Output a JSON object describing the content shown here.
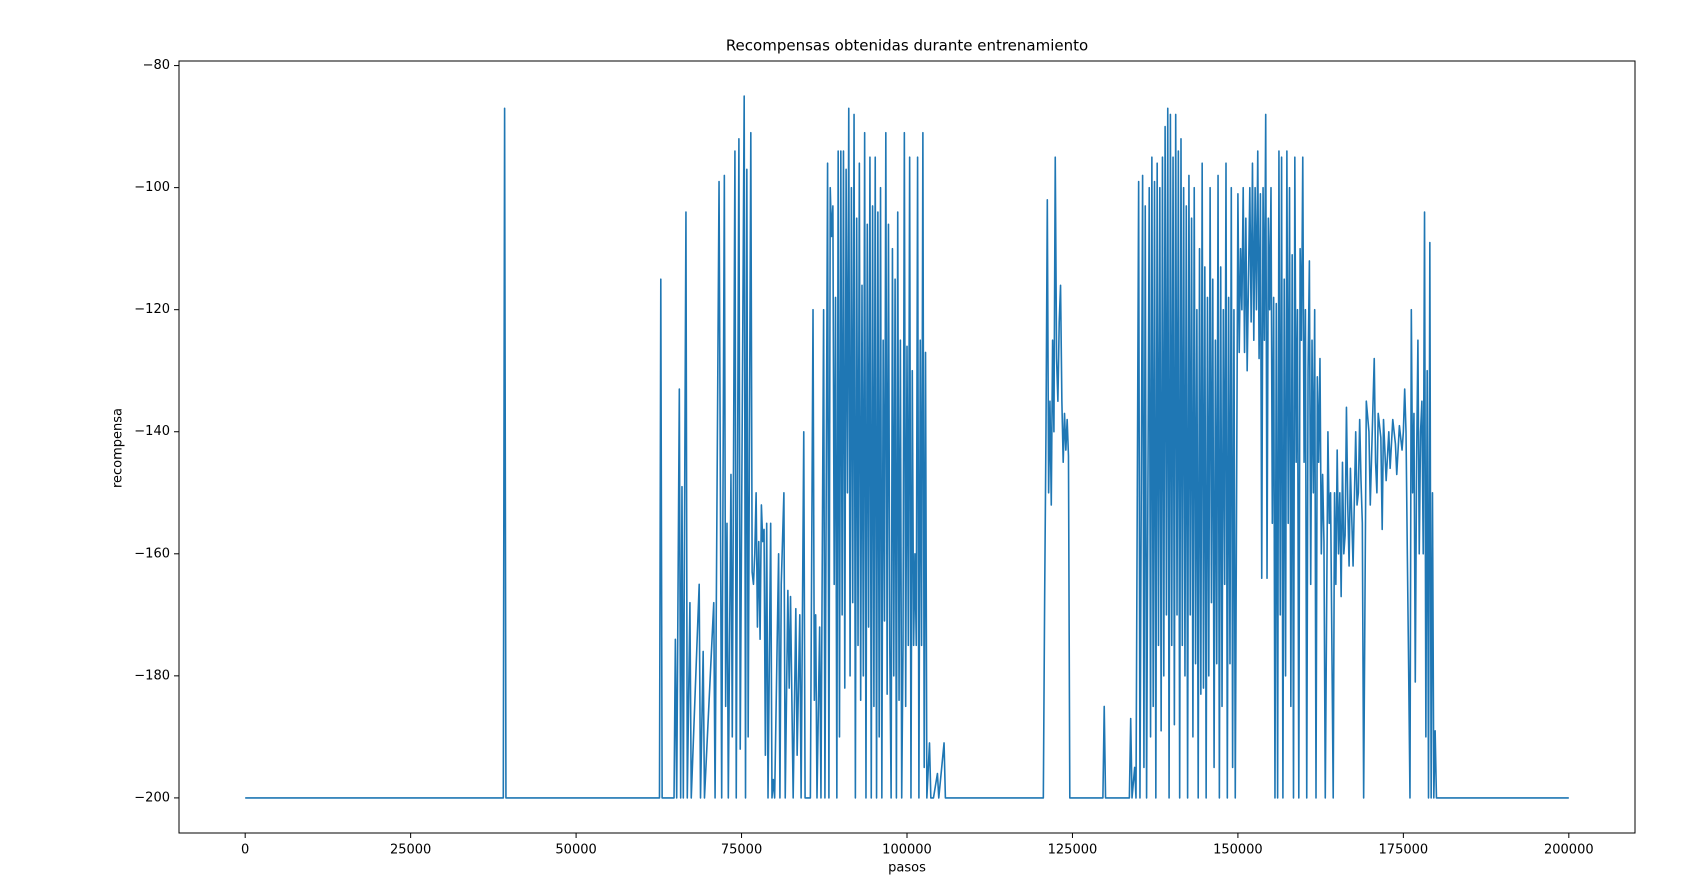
{
  "chart_data": {
    "type": "line",
    "title": "Recompensas obtenidas durante entrenamiento",
    "x_label": "pasos",
    "y_label": "recompensa",
    "xlim": [
      -10000,
      210000
    ],
    "ylim": [
      -205.75,
      -79.25
    ],
    "xticks": [
      0,
      25000,
      50000,
      75000,
      100000,
      125000,
      150000,
      175000,
      200000
    ],
    "yticks": [
      {
        "value": -200,
        "label": "−200"
      },
      {
        "value": -180,
        "label": "−180"
      },
      {
        "value": -160,
        "label": "−160"
      },
      {
        "value": -140,
        "label": "−140"
      },
      {
        "value": -120,
        "label": "−120"
      },
      {
        "value": -100,
        "label": "−100"
      },
      {
        "value": -80,
        "label": "−80"
      }
    ],
    "grid": false,
    "color": "#1f77b4",
    "x": [
      0,
      39000,
      39200,
      39400,
      62600,
      62800,
      63000,
      64800,
      65000,
      65200,
      65600,
      65800,
      66000,
      66200,
      66600,
      66800,
      67200,
      67400,
      68600,
      68800,
      69200,
      69400,
      70800,
      71000,
      71600,
      71800,
      72000,
      72400,
      72600,
      72800,
      73000,
      73400,
      73600,
      74000,
      74200,
      74600,
      74800,
      75400,
      75600,
      75800,
      76000,
      76400,
      76600,
      76800,
      77000,
      77200,
      77400,
      77600,
      77800,
      78000,
      78200,
      78400,
      78600,
      78800,
      79000,
      79400,
      79600,
      79800,
      80000,
      80600,
      80800,
      81000,
      81400,
      81600,
      82000,
      82200,
      82400,
      82800,
      83200,
      83400,
      83800,
      84000,
      84400,
      84600,
      85400,
      85800,
      86000,
      86200,
      86400,
      86800,
      87000,
      87400,
      87600,
      88000,
      88200,
      88400,
      88600,
      88800,
      89000,
      89200,
      89400,
      89600,
      89800,
      90000,
      90200,
      90400,
      90600,
      90800,
      91000,
      91200,
      91400,
      91600,
      91800,
      92000,
      92200,
      92400,
      92600,
      92800,
      93000,
      93200,
      93400,
      93600,
      93800,
      94000,
      94200,
      94400,
      94600,
      94800,
      95000,
      95200,
      95400,
      95600,
      95800,
      96000,
      96200,
      96400,
      96600,
      96800,
      97000,
      97200,
      97400,
      97600,
      97800,
      98000,
      98200,
      98400,
      98600,
      98800,
      99000,
      99200,
      99400,
      99600,
      99800,
      100000,
      100200,
      100400,
      100600,
      100800,
      101000,
      101200,
      101400,
      101600,
      101800,
      102000,
      102200,
      102400,
      102600,
      102800,
      103000,
      103400,
      103600,
      104000,
      104600,
      104800,
      105600,
      105800,
      120600,
      120800,
      121000,
      121200,
      121400,
      121600,
      121800,
      122000,
      122200,
      122400,
      122600,
      122800,
      123000,
      123200,
      123400,
      123600,
      123800,
      124000,
      124200,
      124400,
      124600,
      129600,
      129800,
      130000,
      133600,
      133800,
      134000,
      134400,
      134600,
      135000,
      135200,
      135600,
      135800,
      136000,
      136200,
      136600,
      136800,
      137000,
      137200,
      137400,
      137600,
      137800,
      138000,
      138200,
      138400,
      138600,
      138800,
      139000,
      139200,
      139400,
      139600,
      139800,
      140000,
      140200,
      140400,
      140600,
      140800,
      141000,
      141200,
      141400,
      141600,
      141800,
      142000,
      142200,
      142400,
      142600,
      142800,
      143000,
      143200,
      143400,
      143600,
      143800,
      144000,
      144200,
      144400,
      144600,
      144800,
      145000,
      145200,
      145400,
      145600,
      145800,
      146000,
      146200,
      146400,
      146600,
      146800,
      147000,
      147200,
      147400,
      147600,
      147800,
      148000,
      148200,
      148400,
      148600,
      148800,
      149000,
      149200,
      149400,
      149600,
      150000,
      150200,
      150400,
      150600,
      150800,
      151000,
      151200,
      151400,
      151600,
      151800,
      152000,
      152200,
      152400,
      152600,
      152800,
      153000,
      153200,
      153400,
      153600,
      153800,
      154000,
      154200,
      154400,
      154600,
      154800,
      155000,
      155200,
      155400,
      155600,
      155800,
      156000,
      156200,
      156400,
      156600,
      156800,
      157000,
      157200,
      157400,
      157600,
      157800,
      158000,
      158200,
      158400,
      158600,
      158800,
      159000,
      159200,
      159400,
      159600,
      159800,
      160000,
      160200,
      160400,
      160600,
      160800,
      161000,
      161200,
      161400,
      161600,
      161800,
      162000,
      162200,
      162400,
      162600,
      162800,
      163000,
      163200,
      163600,
      163800,
      164000,
      164400,
      164600,
      164800,
      165000,
      165200,
      165400,
      165600,
      165800,
      166000,
      166200,
      166400,
      166600,
      166800,
      167000,
      167400,
      167800,
      168000,
      168200,
      168400,
      168600,
      168800,
      169000,
      169400,
      169800,
      170000,
      170400,
      170600,
      170800,
      171000,
      171200,
      171600,
      171800,
      172000,
      172400,
      172800,
      173000,
      173400,
      173800,
      174000,
      174400,
      174800,
      175000,
      175200,
      175400,
      175600,
      175800,
      176000,
      176200,
      176400,
      176600,
      176800,
      177000,
      177200,
      177400,
      177600,
      177800,
      178000,
      178200,
      178400,
      178600,
      178800,
      179000,
      179200,
      179400,
      179600,
      179800,
      180000,
      200000
    ],
    "values": [
      -200,
      -200,
      -87,
      -200,
      -200,
      -115,
      -200,
      -200,
      -174,
      -200,
      -133,
      -200,
      -149,
      -200,
      -104,
      -200,
      -168,
      -200,
      -165,
      -200,
      -176,
      -200,
      -168,
      -200,
      -99,
      -149,
      -200,
      -98,
      -185,
      -155,
      -200,
      -147,
      -190,
      -94,
      -200,
      -92,
      -192,
      -85,
      -200,
      -97,
      -190,
      -91,
      -163,
      -165,
      -160,
      -150,
      -172,
      -158,
      -174,
      -152,
      -158,
      -156,
      -193,
      -155,
      -200,
      -155,
      -200,
      -197,
      -200,
      -160,
      -200,
      -165,
      -150,
      -200,
      -166,
      -182,
      -167,
      -200,
      -169,
      -193,
      -170,
      -200,
      -140,
      -200,
      -200,
      -120,
      -184,
      -170,
      -200,
      -172,
      -200,
      -120,
      -200,
      -96,
      -200,
      -100,
      -108,
      -103,
      -165,
      -118,
      -200,
      -94,
      -190,
      -94,
      -170,
      -94,
      -182,
      -97,
      -150,
      -87,
      -180,
      -100,
      -168,
      -88,
      -200,
      -105,
      -175,
      -96,
      -184,
      -116,
      -180,
      -91,
      -200,
      -106,
      -172,
      -95,
      -200,
      -103,
      -185,
      -95,
      -200,
      -104,
      -190,
      -100,
      -200,
      -125,
      -171,
      -91,
      -183,
      -106,
      -175,
      -200,
      -110,
      -180,
      -115,
      -200,
      -104,
      -184,
      -125,
      -200,
      -175,
      -91,
      -185,
      -126,
      -175,
      -95,
      -200,
      -130,
      -175,
      -160,
      -175,
      -95,
      -200,
      -125,
      -175,
      -91,
      -195,
      -127,
      -200,
      -191,
      -200,
      -200,
      -196,
      -200,
      -191,
      -200,
      -200,
      -167,
      -140,
      -102,
      -150,
      -135,
      -152,
      -125,
      -140,
      -95,
      -128,
      -135,
      -122,
      -116,
      -135,
      -145,
      -137,
      -143,
      -138,
      -144,
      -200,
      -200,
      -185,
      -200,
      -200,
      -187,
      -200,
      -195,
      -200,
      -99,
      -200,
      -98,
      -195,
      -103,
      -200,
      -100,
      -190,
      -95,
      -185,
      -99,
      -200,
      -96,
      -175,
      -100,
      -189,
      -95,
      -180,
      -90,
      -170,
      -87,
      -200,
      -88,
      -175,
      -95,
      -188,
      -88,
      -170,
      -94,
      -200,
      -92,
      -175,
      -100,
      -180,
      -103,
      -200,
      -98,
      -170,
      -105,
      -190,
      -100,
      -178,
      -120,
      -200,
      -110,
      -183,
      -96,
      -182,
      -113,
      -200,
      -118,
      -180,
      -100,
      -168,
      -115,
      -195,
      -125,
      -178,
      -98,
      -200,
      -113,
      -185,
      -120,
      -165,
      -96,
      -200,
      -118,
      -178,
      -100,
      -195,
      -120,
      -200,
      -101,
      -127,
      -110,
      -120,
      -100,
      -127,
      -105,
      -130,
      -115,
      -100,
      -122,
      -96,
      -125,
      -100,
      -120,
      -94,
      -128,
      -101,
      -164,
      -100,
      -125,
      -88,
      -164,
      -105,
      -120,
      -100,
      -155,
      -118,
      -200,
      -119,
      -200,
      -94,
      -170,
      -95,
      -200,
      -115,
      -180,
      -94,
      -155,
      -100,
      -185,
      -111,
      -200,
      -95,
      -145,
      -120,
      -200,
      -110,
      -125,
      -95,
      -145,
      -120,
      -200,
      -130,
      -112,
      -165,
      -125,
      -150,
      -120,
      -200,
      -131,
      -145,
      -128,
      -160,
      -147,
      -158,
      -200,
      -140,
      -155,
      -150,
      -200,
      -150,
      -165,
      -143,
      -160,
      -150,
      -167,
      -145,
      -160,
      -157,
      -136,
      -152,
      -162,
      -146,
      -162,
      -140,
      -152,
      -150,
      -138,
      -148,
      -155,
      -200,
      -135,
      -140,
      -152,
      -136,
      -128,
      -145,
      -150,
      -137,
      -141,
      -156,
      -138,
      -148,
      -140,
      -146,
      -138,
      -142,
      -147,
      -139,
      -143,
      -140,
      -133,
      -140,
      -160,
      -179,
      -200,
      -120,
      -150,
      -137,
      -181,
      -145,
      -125,
      -160,
      -140,
      -135,
      -160,
      -104,
      -190,
      -130,
      -200,
      -109,
      -200,
      -150,
      -200,
      -189,
      -200,
      -200
    ]
  }
}
